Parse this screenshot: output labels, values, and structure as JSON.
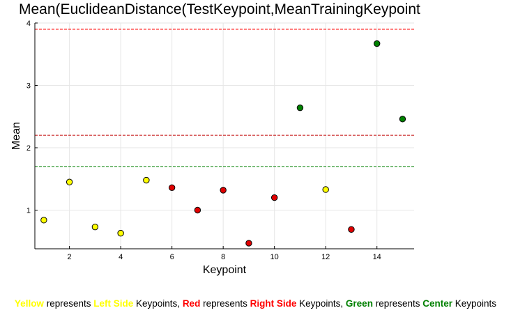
{
  "chart_data": {
    "type": "scatter",
    "title": "Mean(EuclideanDistance(TestKeypoint,MeanTrainingKeypoint",
    "xlabel": "Keypoint",
    "ylabel": "Mean",
    "xlim": [
      0.65,
      15.45
    ],
    "ylim": [
      0.38,
      4.0
    ],
    "xticks": [
      2,
      4,
      6,
      8,
      10,
      12,
      14
    ],
    "yticks": [
      1,
      2,
      3,
      4
    ],
    "grid": true,
    "series": [
      {
        "name": "Left Side",
        "color": "#ffff00",
        "x": [
          1,
          2,
          3,
          4,
          5,
          12
        ],
        "y": [
          0.84,
          1.45,
          0.73,
          0.63,
          1.48,
          1.33
        ]
      },
      {
        "name": "Right Side",
        "color": "#e00000",
        "x": [
          6,
          7,
          8,
          9,
          10,
          13
        ],
        "y": [
          1.36,
          1.0,
          1.32,
          0.47,
          1.2,
          0.69
        ]
      },
      {
        "name": "Center",
        "color": "#008000",
        "x": [
          11,
          14,
          15
        ],
        "y": [
          2.64,
          3.67,
          2.46
        ]
      }
    ],
    "reference_lines": [
      {
        "y": 3.9,
        "color": "#ff0000"
      },
      {
        "y": 2.2,
        "color": "#c00000"
      },
      {
        "y": 1.7,
        "color": "#008000"
      }
    ]
  },
  "caption": {
    "yellow_word": "Yellow",
    "represents_1": " represents ",
    "left_side": "Left Side",
    "keypoints_1": " Keypoints, ",
    "red_word": "Red",
    "represents_2": " represents ",
    "right_side": "Right Side",
    "keypoints_2": " Keypoints, ",
    "green_word": "Green",
    "represents_3": " represents ",
    "center": "Center",
    "keypoints_3": " Keypoints"
  }
}
